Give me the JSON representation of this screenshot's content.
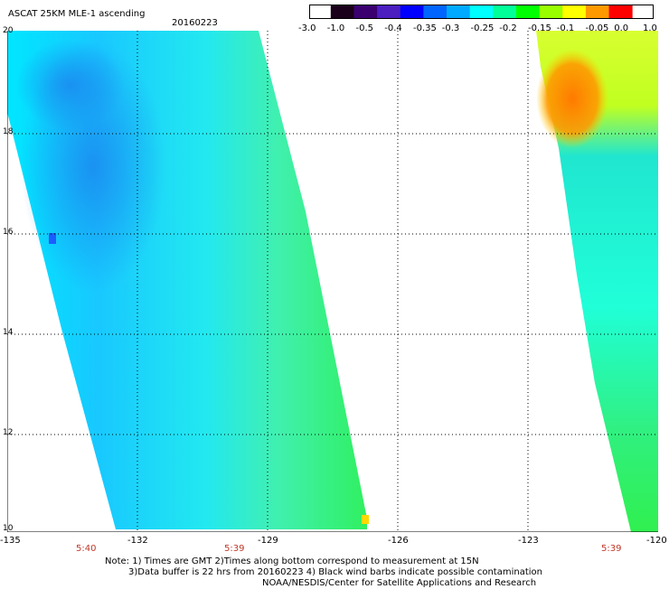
{
  "header": {
    "title": "ASCAT 25KM MLE-1 ascending",
    "date": "20160223"
  },
  "colorbar": {
    "labels": [
      "-3.0",
      "-1.0",
      "-0.5",
      "-0.4",
      "-0.35",
      "-0.3",
      "-0.25",
      "-0.2",
      "-0.15",
      "-0.1",
      "-0.05",
      "0.0",
      "1.0"
    ],
    "colors": [
      "#1a001a",
      "#3a0070",
      "#4b1fc0",
      "#0000ff",
      "#0066ff",
      "#00aaff",
      "#00ffff",
      "#00ff99",
      "#00ff00",
      "#99ff00",
      "#ffff00",
      "#ff9900",
      "#ff0000"
    ]
  },
  "axes": {
    "lat_labels": [
      "20",
      "18",
      "16",
      "14",
      "12",
      "10"
    ],
    "lon_labels": [
      "-135",
      "-132",
      "-129",
      "-126",
      "-123",
      "-120"
    ],
    "time_labels": [
      "5:40",
      "5:39",
      "5:39"
    ]
  },
  "notes": {
    "line1": "Note: 1) Times are GMT 2)Times along bottom correspond to measurement at 15N",
    "line2": "3)Data buffer is 22 hrs from 20160223 4) Black wind barbs indicate possible contamination",
    "line3": "NOAA/NESDIS/Center for Satellite Applications and Research"
  }
}
